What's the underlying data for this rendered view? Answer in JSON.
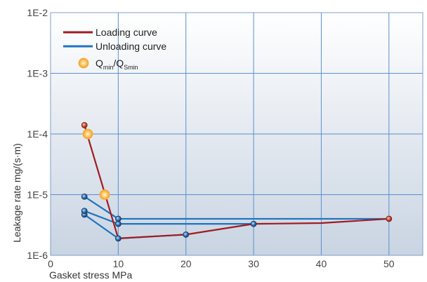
{
  "chart_data": {
    "type": "line",
    "xlabel": "Gasket stress MPa",
    "ylabel": "Leakage rate mg/(s·m)",
    "xlim": [
      0,
      55
    ],
    "x_ticks": [
      0,
      10,
      20,
      30,
      40,
      50
    ],
    "x_tick_labels": [
      "0",
      "10",
      "20",
      "30",
      "40",
      "50"
    ],
    "y_scale": "log",
    "ylim": [
      1e-06,
      0.01
    ],
    "y_ticks": [
      1e-06,
      1e-05,
      0.0001,
      0.001,
      0.01
    ],
    "y_tick_labels": [
      "1E-6",
      "1E-5",
      "1E-4",
      "1E-3",
      "1E-2"
    ],
    "grid": true,
    "legend_position": "top-left",
    "legend": {
      "loading": "Loading curve",
      "unloading": "Unloading curve",
      "qmin_main": "Q",
      "qmin_sub1": "min",
      "qmin_sep": "/Q",
      "qmin_sub2": "Smin"
    },
    "colors": {
      "loading": "#a01c22",
      "unloading": "#1e73be",
      "qmin": "#f5a623",
      "grid": "#5b8fd0"
    },
    "series": [
      {
        "key": "loading",
        "name": "Loading curve",
        "x": [
          5,
          10,
          20,
          30,
          40,
          50
        ],
        "y": [
          0.00014,
          1.9e-06,
          2.2e-06,
          3.3e-06,
          3.4e-06,
          4e-06
        ]
      },
      {
        "key": "unloading",
        "name": "Unloading curve",
        "segments": [
          {
            "x": [
              5,
              10,
              20
            ],
            "y": [
              4.7e-06,
              1.9e-06,
              2.2e-06
            ]
          },
          {
            "x": [
              5,
              10,
              30
            ],
            "y": [
              5.4e-06,
              3.3e-06,
              3.3e-06
            ]
          },
          {
            "x": [
              5,
              10,
              50
            ],
            "y": [
              9.3e-06,
              4e-06,
              4e-06
            ]
          }
        ]
      },
      {
        "key": "qmin",
        "name": "Qmin/QSmin",
        "points": [
          {
            "x": 5.5,
            "y": 0.0001
          },
          {
            "x": 8,
            "y": 1e-05
          }
        ]
      }
    ]
  }
}
